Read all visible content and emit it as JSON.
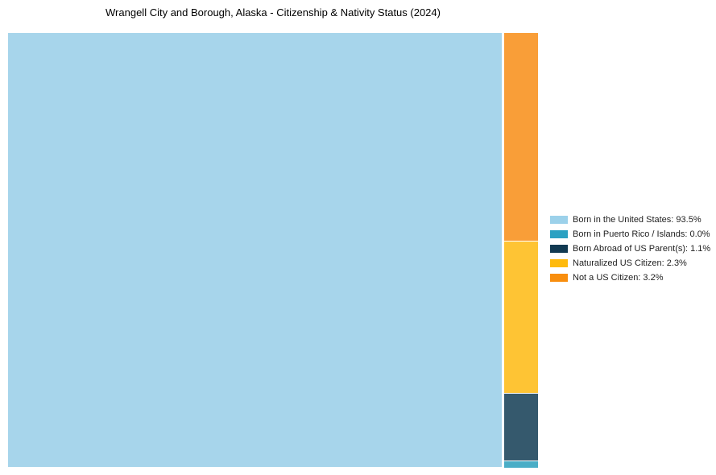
{
  "page": {
    "background_color": "#ffffff"
  },
  "chart_data": {
    "type": "treemap",
    "title": "Wrangell City and Borough, Alaska - Citizenship & Nativity Status (2024)",
    "unit": "percent",
    "legend_position": "right-center",
    "grid": false,
    "segments": [
      {
        "label": "Born in the United States",
        "value_pct": 93.5,
        "legend_text": "Born in the United States: 93.5%",
        "legend_color": "#9CD1EA",
        "chart_color": "#A7D5EB"
      },
      {
        "label": "Born in Puerto Rico / Islands",
        "value_pct": 0.0,
        "legend_text": "Born in Puerto Rico / Islands: 0.0%",
        "legend_color": "#2BA1C2",
        "chart_color": "#4AADC6"
      },
      {
        "label": "Born Abroad of US Parent(s)",
        "value_pct": 1.1,
        "legend_text": "Born Abroad of US Parent(s): 1.1%",
        "legend_color": "#123A52",
        "chart_color": "#35596D"
      },
      {
        "label": "Naturalized US Citizen",
        "value_pct": 2.3,
        "legend_text": "Naturalized US Citizen: 2.3%",
        "legend_color": "#FEBA0D",
        "chart_color": "#FEC434"
      },
      {
        "label": "Not a US Citizen",
        "value_pct": 3.2,
        "legend_text": "Not a US Citizen: 3.2%",
        "legend_color": "#F88E0E",
        "chart_color": "#F99E38"
      }
    ]
  }
}
